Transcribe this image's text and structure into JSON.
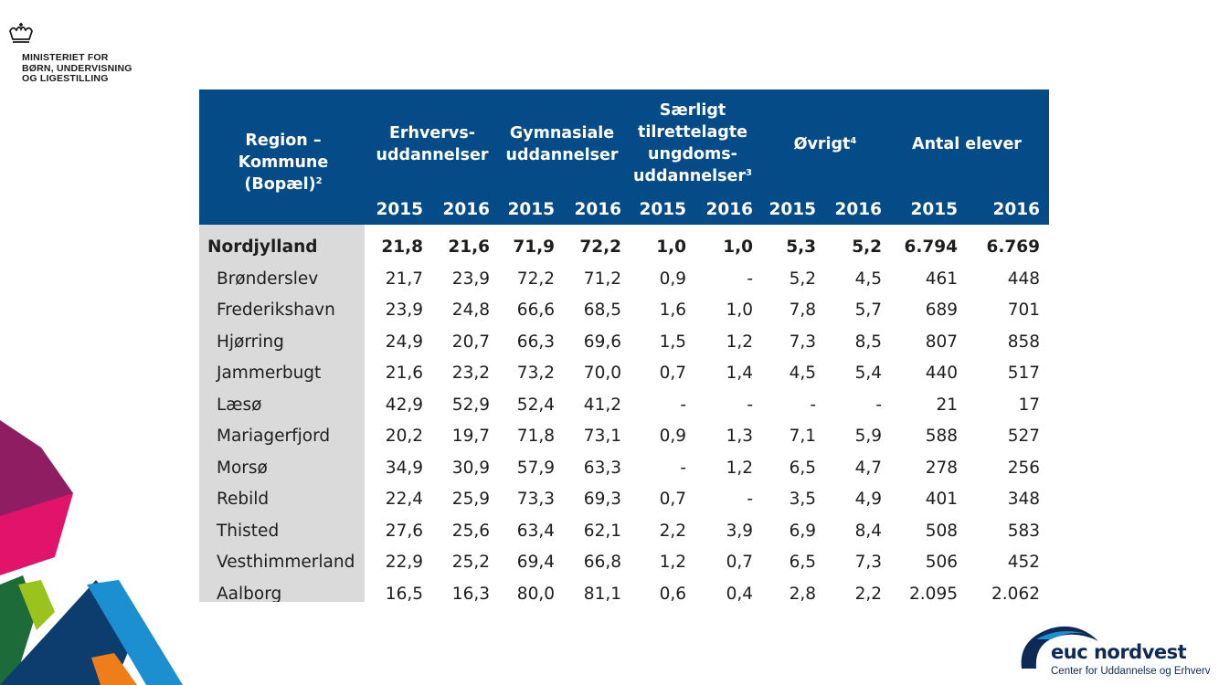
{
  "ministry": {
    "lines": [
      "MINISTERIET FOR",
      "BØRN, UNDERVISNING",
      "OG LIGESTILLING"
    ]
  },
  "table": {
    "headers": {
      "region": [
        "Region –",
        "Kommune",
        "(Bopæl)"
      ],
      "region_note": "2",
      "erhverv": [
        "Erhvervs-",
        "uddannelser"
      ],
      "gymnasiale": [
        "Gymnasiale",
        "uddannelser"
      ],
      "saerligt": [
        "Særligt",
        "tilrettelagte",
        "ungdoms-",
        "uddannelser"
      ],
      "saerligt_note": "3",
      "ovrigt": "Øvrigt",
      "ovrigt_note": "4",
      "antal": "Antal elever"
    },
    "years": [
      "2015",
      "2016",
      "2015",
      "2016",
      "2015",
      "2016",
      "2015",
      "2016",
      "2015",
      "2016"
    ],
    "rows": [
      {
        "name": "Nordjylland",
        "values": [
          "21,8",
          "21,6",
          "71,9",
          "72,2",
          "1,0",
          "1,0",
          "5,3",
          "5,2",
          "6.794",
          "6.769"
        ]
      },
      {
        "name": "Brønderslev",
        "values": [
          "21,7",
          "23,9",
          "72,2",
          "71,2",
          "0,9",
          "-",
          "5,2",
          "4,5",
          "461",
          "448"
        ]
      },
      {
        "name": "Frederikshavn",
        "values": [
          "23,9",
          "24,8",
          "66,6",
          "68,5",
          "1,6",
          "1,0",
          "7,8",
          "5,7",
          "689",
          "701"
        ]
      },
      {
        "name": "Hjørring",
        "values": [
          "24,9",
          "20,7",
          "66,3",
          "69,6",
          "1,5",
          "1,2",
          "7,3",
          "8,5",
          "807",
          "858"
        ]
      },
      {
        "name": "Jammerbugt",
        "values": [
          "21,6",
          "23,2",
          "73,2",
          "70,0",
          "0,7",
          "1,4",
          "4,5",
          "5,4",
          "440",
          "517"
        ]
      },
      {
        "name": "Læsø",
        "values": [
          "42,9",
          "52,9",
          "52,4",
          "41,2",
          "-",
          "-",
          "-",
          "-",
          "21",
          "17"
        ]
      },
      {
        "name": "Mariagerfjord",
        "values": [
          "20,2",
          "19,7",
          "71,8",
          "73,1",
          "0,9",
          "1,3",
          "7,1",
          "5,9",
          "588",
          "527"
        ]
      },
      {
        "name": "Morsø",
        "values": [
          "34,9",
          "30,9",
          "57,9",
          "63,3",
          "-",
          "1,2",
          "6,5",
          "4,7",
          "278",
          "256"
        ]
      },
      {
        "name": "Rebild",
        "values": [
          "22,4",
          "25,9",
          "73,3",
          "69,3",
          "0,7",
          "-",
          "3,5",
          "4,9",
          "401",
          "348"
        ]
      },
      {
        "name": "Thisted",
        "values": [
          "27,6",
          "25,6",
          "63,4",
          "62,1",
          "2,2",
          "3,9",
          "6,9",
          "8,4",
          "508",
          "583"
        ]
      },
      {
        "name": "Vesthimmerland",
        "values": [
          "22,9",
          "25,2",
          "69,4",
          "66,8",
          "1,2",
          "0,7",
          "6,5",
          "7,3",
          "506",
          "452"
        ]
      },
      {
        "name": "Aalborg",
        "values": [
          "16,5",
          "16,3",
          "80,0",
          "81,1",
          "0,6",
          "0,4",
          "2,8",
          "2,2",
          "2.095",
          "2.062"
        ]
      }
    ]
  },
  "euc": {
    "name": "euc nordvest",
    "subtitle": "Center for Uddannelse og Erhverv"
  },
  "colors": {
    "header_bg": "#054b87",
    "name_col_bg": "#dadada",
    "euc_blue": "#0d2a57"
  }
}
